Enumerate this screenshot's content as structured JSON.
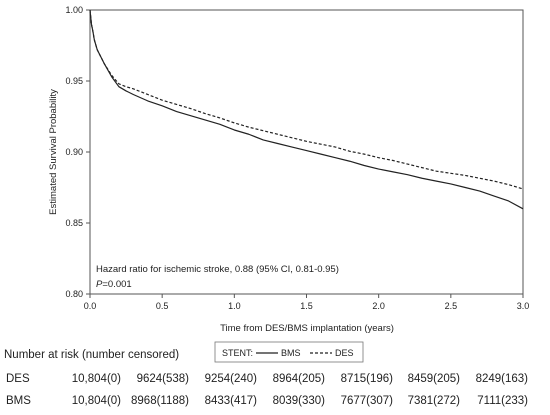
{
  "chart_data": {
    "type": "line",
    "title": "",
    "xlabel": "Time from DES/BMS implantation (years)",
    "ylabel": "Estimated Survival Probability",
    "xlim": [
      0,
      3
    ],
    "ylim": [
      0.8,
      1.0
    ],
    "x_ticks": [
      "0.0",
      "0.5",
      "1.0",
      "1.5",
      "2.0",
      "2.5",
      "3.0"
    ],
    "y_ticks": [
      "0.80",
      "0.85",
      "0.90",
      "0.95",
      "1.00"
    ],
    "grid": false,
    "legend": {
      "title": "STENT:",
      "placement": "bottom-center",
      "entries": [
        {
          "name": "BMS",
          "style": "solid"
        },
        {
          "name": "DES",
          "style": "dashed"
        }
      ]
    },
    "series": [
      {
        "name": "BMS",
        "style": "solid",
        "color": "#222222",
        "x": [
          0,
          0.01,
          0.02,
          0.03,
          0.05,
          0.08,
          0.1,
          0.15,
          0.2,
          0.25,
          0.3,
          0.4,
          0.5,
          0.6,
          0.7,
          0.8,
          0.9,
          1.0,
          1.1,
          1.2,
          1.3,
          1.4,
          1.5,
          1.6,
          1.7,
          1.8,
          1.9,
          2.0,
          2.1,
          2.2,
          2.3,
          2.4,
          2.5,
          2.6,
          2.7,
          2.8,
          2.9,
          3.0
        ],
        "y": [
          1.0,
          0.99,
          0.985,
          0.979,
          0.972,
          0.966,
          0.962,
          0.953,
          0.946,
          0.943,
          0.9405,
          0.936,
          0.9325,
          0.9285,
          0.9255,
          0.9225,
          0.9195,
          0.9155,
          0.9125,
          0.9085,
          0.906,
          0.9035,
          0.901,
          0.8985,
          0.896,
          0.8935,
          0.8905,
          0.888,
          0.886,
          0.884,
          0.8815,
          0.8795,
          0.8775,
          0.875,
          0.8725,
          0.869,
          0.8655,
          0.86
        ]
      },
      {
        "name": "DES",
        "style": "dashed",
        "color": "#222222",
        "x": [
          0,
          0.01,
          0.02,
          0.03,
          0.05,
          0.08,
          0.1,
          0.15,
          0.2,
          0.25,
          0.3,
          0.4,
          0.5,
          0.6,
          0.7,
          0.8,
          0.9,
          1.0,
          1.1,
          1.2,
          1.3,
          1.4,
          1.5,
          1.6,
          1.7,
          1.8,
          1.9,
          2.0,
          2.1,
          2.2,
          2.3,
          2.4,
          2.5,
          2.6,
          2.7,
          2.8,
          2.9,
          3.0
        ],
        "y": [
          1.0,
          0.99,
          0.985,
          0.979,
          0.972,
          0.966,
          0.962,
          0.954,
          0.948,
          0.946,
          0.9445,
          0.9405,
          0.9365,
          0.9335,
          0.9305,
          0.927,
          0.924,
          0.9205,
          0.9175,
          0.915,
          0.9125,
          0.91,
          0.9075,
          0.9055,
          0.9035,
          0.9005,
          0.8985,
          0.896,
          0.894,
          0.8915,
          0.889,
          0.8865,
          0.885,
          0.8835,
          0.8815,
          0.8795,
          0.877,
          0.874
        ]
      }
    ],
    "annotations": [
      {
        "text": "Hazard ratio for ischemic stroke, 0.88 (95% CI, 0.81-0.95)"
      },
      {
        "italic": "P",
        "text": "=0.001"
      }
    ],
    "risk_table": {
      "title": "Number at risk (number censored)",
      "rows": [
        {
          "label": "DES",
          "values": [
            "10,804(0)",
            "9624(538)",
            "9254(240)",
            "8964(205)",
            "8715(196)",
            "8459(205)",
            "8249(163)"
          ]
        },
        {
          "label": "BMS",
          "values": [
            "10,804(0)",
            "8968(1188)",
            "8433(417)",
            "8039(330)",
            "7677(307)",
            "7381(272)",
            "7111(233)"
          ]
        }
      ]
    }
  }
}
